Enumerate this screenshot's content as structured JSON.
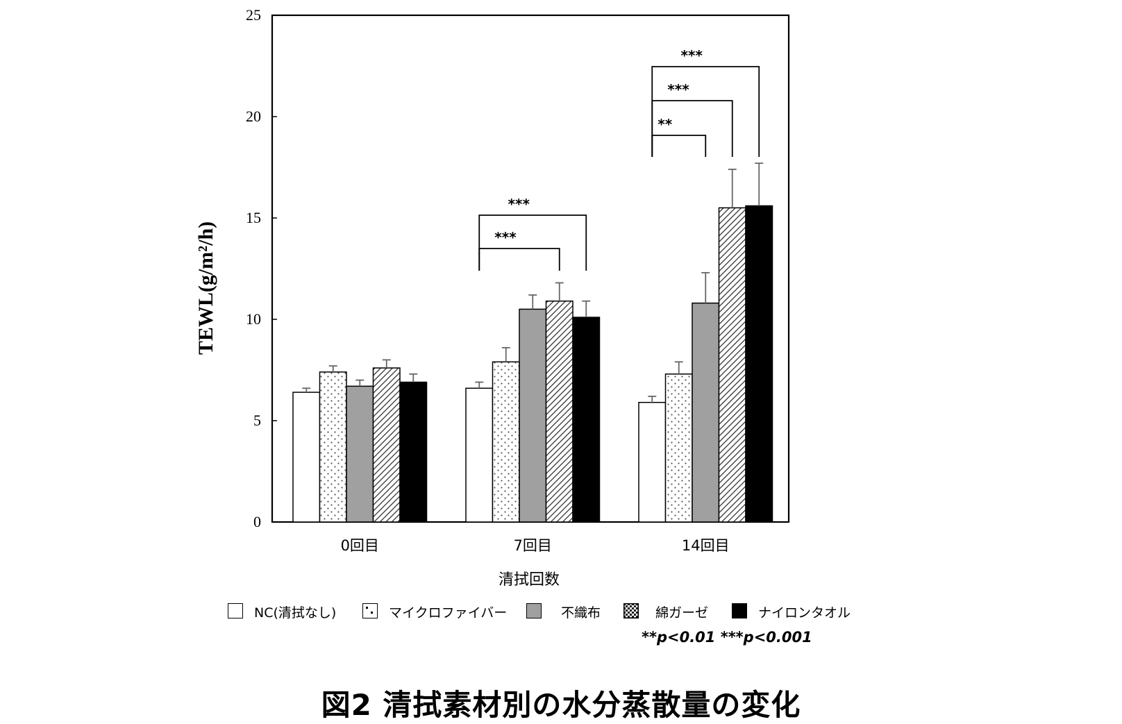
{
  "chart_data": {
    "type": "bar",
    "ylabel": "TEWL(g/m²/h)",
    "xlabel": "清拭回数",
    "ylim": [
      0,
      25
    ],
    "yticks": [
      0,
      5,
      10,
      15,
      20,
      25
    ],
    "categories": [
      "0回目",
      "7回目",
      "14回目"
    ],
    "series": [
      {
        "name": "NC(清拭なし)",
        "pattern": "white",
        "values": [
          6.4,
          6.6,
          5.9
        ],
        "errors": [
          0.2,
          0.3,
          0.3
        ]
      },
      {
        "name": "マイクロファイバー",
        "pattern": "dots",
        "values": [
          7.4,
          7.9,
          7.3
        ],
        "errors": [
          0.3,
          0.7,
          0.6
        ]
      },
      {
        "name": "不織布",
        "pattern": "gray",
        "values": [
          6.7,
          10.5,
          10.8
        ],
        "errors": [
          0.3,
          0.7,
          1.5
        ]
      },
      {
        "name": "綿ガーゼ",
        "pattern": "hatch",
        "values": [
          7.6,
          10.9,
          15.5
        ],
        "errors": [
          0.4,
          0.9,
          1.9
        ]
      },
      {
        "name": "ナイロンタオル",
        "pattern": "black",
        "values": [
          6.9,
          10.1,
          15.6
        ],
        "errors": [
          0.4,
          0.8,
          2.1
        ]
      }
    ],
    "significance": [
      {
        "category": 1,
        "from": 0,
        "to": 3,
        "label": "***"
      },
      {
        "category": 1,
        "from": 0,
        "to": 4,
        "label": "***"
      },
      {
        "category": 2,
        "from": 0,
        "to": 2,
        "label": "**"
      },
      {
        "category": 2,
        "from": 0,
        "to": 3,
        "label": "***"
      },
      {
        "category": 2,
        "from": 0,
        "to": 4,
        "label": "***"
      }
    ],
    "legend": "bottom",
    "grid": false
  },
  "note": "**p<0.01  ***p<0.001",
  "caption": "図2  清拭素材別の水分蒸散量の変化",
  "colors": {
    "gray": "#a0a0a0",
    "black": "#000000",
    "white": "#ffffff"
  }
}
